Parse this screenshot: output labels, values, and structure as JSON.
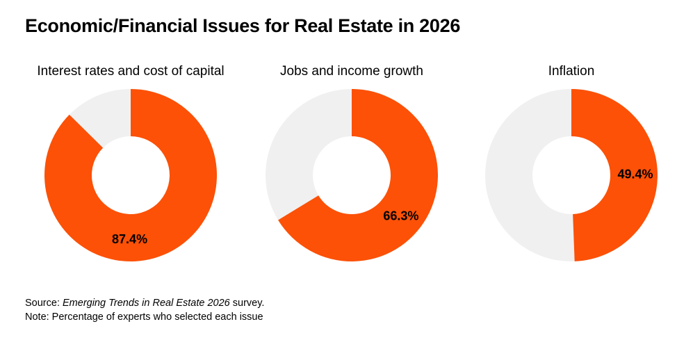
{
  "title": "Economic/Financial Issues for Real Estate in 2026",
  "colors": {
    "selected": "#FC5107",
    "remainder": "#F0F0F0"
  },
  "chart_data": [
    {
      "type": "pie",
      "title": "Interest rates and cost of capital",
      "value": 87.4,
      "label": "87.4%"
    },
    {
      "type": "pie",
      "title": "Jobs and income growth",
      "value": 66.3,
      "label": "66.3%"
    },
    {
      "type": "pie",
      "title": "Inflation",
      "value": 49.4,
      "label": "49.4%"
    }
  ],
  "footer": {
    "source_prefix": "Source: ",
    "source_title": "Emerging Trends in Real Estate 2026",
    "source_suffix": " survey.",
    "note": "Note: Percentage of experts who selected each issue"
  }
}
